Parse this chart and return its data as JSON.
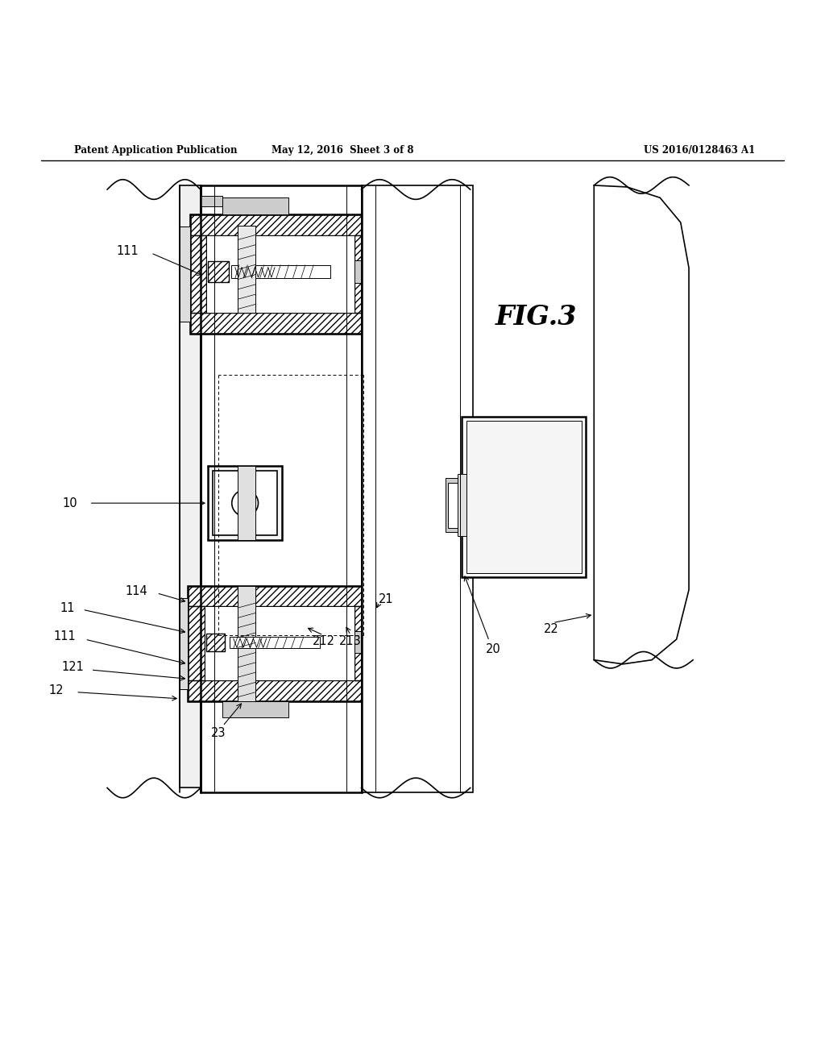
{
  "title_left": "Patent Application Publication",
  "title_mid": "May 12, 2016  Sheet 3 of 8",
  "title_right": "US 2016/0128463 A1",
  "fig_label": "FIG.3",
  "bg_color": "#ffffff",
  "line_color": "#000000",
  "hatch_color": "#000000"
}
